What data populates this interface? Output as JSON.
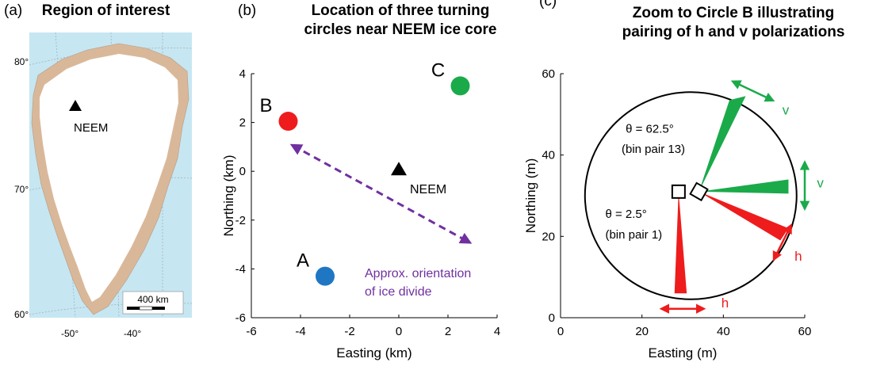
{
  "panels": [
    {
      "letter": "(a)",
      "title": "Region of interest"
    },
    {
      "letter": "(b)",
      "title_line1": "Location of three turning",
      "title_line2": "circles near NEEM ice core"
    },
    {
      "letter": "(c)",
      "title_line1": "Zoom to Circle B illustrating",
      "title_line2": "pairing of h and v polarizations"
    }
  ],
  "map": {
    "lat_labels": [
      "80°",
      "70°",
      "60°"
    ],
    "lon_labels": [
      "-50°",
      "-40°"
    ],
    "site_label": "NEEM",
    "scale_label": "400 km",
    "colors": {
      "ocean": "#c6e6f2",
      "ice": "#ffffff",
      "land": "#d9b89a"
    }
  },
  "chart_data": [
    {
      "type": "scatter",
      "xlabel": "Easting (km)",
      "ylabel": "Northing (km)",
      "xlim": [
        -6,
        4
      ],
      "ylim": [
        -6,
        4
      ],
      "xticks": [
        -6,
        -4,
        -2,
        0,
        2,
        4
      ],
      "yticks": [
        -6,
        -4,
        -2,
        0,
        2,
        4
      ],
      "points": [
        {
          "label": "A",
          "x": -3.0,
          "y": -4.3,
          "color": "#1f77c4"
        },
        {
          "label": "B",
          "x": -4.5,
          "y": 2.05,
          "color": "#ee1c1c"
        },
        {
          "label": "C",
          "x": 2.5,
          "y": 3.5,
          "color": "#1aaa4a"
        }
      ],
      "site": {
        "label": "NEEM",
        "x": 0,
        "y": 0
      },
      "divide_arrow": {
        "x1": -4.3,
        "y1": 1.05,
        "x2": 2.85,
        "y2": -2.9,
        "color": "#7030a0"
      },
      "annotation_line1": "Approx. orientation",
      "annotation_line2": "of ice divide"
    },
    {
      "type": "line",
      "xlabel": "Easting (m)",
      "ylabel": "Northing (m)",
      "xlim": [
        0,
        60
      ],
      "ylim": [
        0,
        60
      ],
      "xticks": [
        0,
        20,
        40,
        60
      ],
      "yticks": [
        0,
        20,
        40,
        60
      ],
      "circle_center": [
        32,
        30
      ],
      "circle_radius": 26,
      "boxes": [
        {
          "x": 29,
          "y": 31
        },
        {
          "x": 34,
          "y": 31
        }
      ],
      "beams": [
        {
          "pol": "v",
          "color": "#1aaa4a",
          "from": [
            34,
            31
          ],
          "tip_a": [
            41.5,
            53.5
          ],
          "tip_b": [
            45.5,
            54.5
          ]
        },
        {
          "pol": "v",
          "color": "#1aaa4a",
          "from": [
            34,
            31
          ],
          "tip_a": [
            56,
            30.5
          ],
          "tip_b": [
            56,
            34
          ]
        },
        {
          "pol": "h",
          "color": "#ee1c1c",
          "from": [
            34,
            31
          ],
          "tip_a": [
            54,
            19
          ],
          "tip_b": [
            56,
            22
          ]
        },
        {
          "pol": "h",
          "color": "#ee1c1c",
          "from": [
            29,
            31
          ],
          "tip_a": [
            28,
            6
          ],
          "tip_b": [
            31,
            6
          ]
        }
      ],
      "arrows": [
        {
          "pol": "v",
          "color": "#1aaa4a",
          "x1": 42.5,
          "y1": 58,
          "x2": 52,
          "y2": 53.5
        },
        {
          "pol": "v",
          "color": "#1aaa4a",
          "x1": 60,
          "y1": 38,
          "x2": 60,
          "y2": 27
        },
        {
          "pol": "h",
          "color": "#ee1c1c",
          "x1": 52.5,
          "y1": 14.5,
          "x2": 56.5,
          "y2": 22.5
        },
        {
          "pol": "h",
          "color": "#ee1c1c",
          "x1": 25,
          "y1": 2.2,
          "x2": 35,
          "y2": 2.2
        }
      ],
      "labels": [
        {
          "text": "v",
          "color": "#1aaa4a",
          "x": 54.5,
          "y": 50
        },
        {
          "text": "v",
          "color": "#1aaa4a",
          "x": 63,
          "y": 32
        },
        {
          "text": "h",
          "color": "#ee1c1c",
          "x": 57.5,
          "y": 14
        },
        {
          "text": "h",
          "color": "#ee1c1c",
          "x": 39.5,
          "y": 2.5
        }
      ],
      "theta_high": "θ = 62.5°",
      "bin_high": "(bin pair 13)",
      "theta_low": "θ = 2.5°",
      "bin_low": "(bin pair 1)"
    }
  ]
}
